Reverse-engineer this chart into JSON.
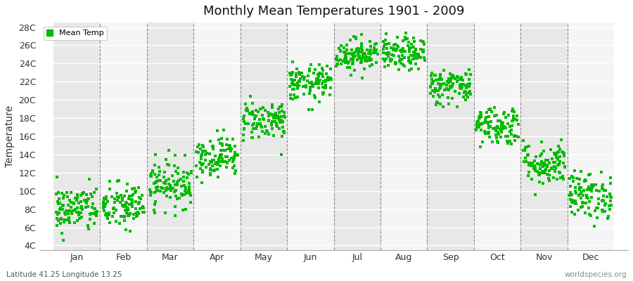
{
  "title": "Monthly Mean Temperatures 1901 - 2009",
  "ylabel": "Temperature",
  "subtitle": "Latitude 41.25 Longitude 13.25",
  "watermark": "worldspecies.org",
  "legend_label": "Mean Temp",
  "dot_color": "#00bb00",
  "background_color": "#ffffff",
  "band_color_odd": "#e8e8e8",
  "band_color_even": "#f5f5f5",
  "months": [
    "Jan",
    "Feb",
    "Mar",
    "Apr",
    "May",
    "Jun",
    "Jul",
    "Aug",
    "Sep",
    "Oct",
    "Nov",
    "Dec"
  ],
  "ylim": [
    3.5,
    28.5
  ],
  "yticks": [
    4,
    6,
    8,
    10,
    12,
    14,
    16,
    18,
    20,
    22,
    24,
    26,
    28
  ],
  "ytick_labels": [
    "4C",
    "6C",
    "8C",
    "10C",
    "12C",
    "14C",
    "16C",
    "18C",
    "20C",
    "22C",
    "24C",
    "26C",
    "28C"
  ],
  "month_mean_temps": [
    8.0,
    8.3,
    10.8,
    13.8,
    17.8,
    21.8,
    25.0,
    25.0,
    21.5,
    17.2,
    13.0,
    9.5
  ],
  "month_std_temps": [
    1.3,
    1.3,
    1.3,
    1.1,
    1.1,
    1.0,
    0.9,
    0.9,
    1.0,
    1.1,
    1.2,
    1.3
  ],
  "n_years": 109,
  "seed": 42,
  "figsize": [
    9.0,
    4.0
  ],
  "dpi": 100
}
